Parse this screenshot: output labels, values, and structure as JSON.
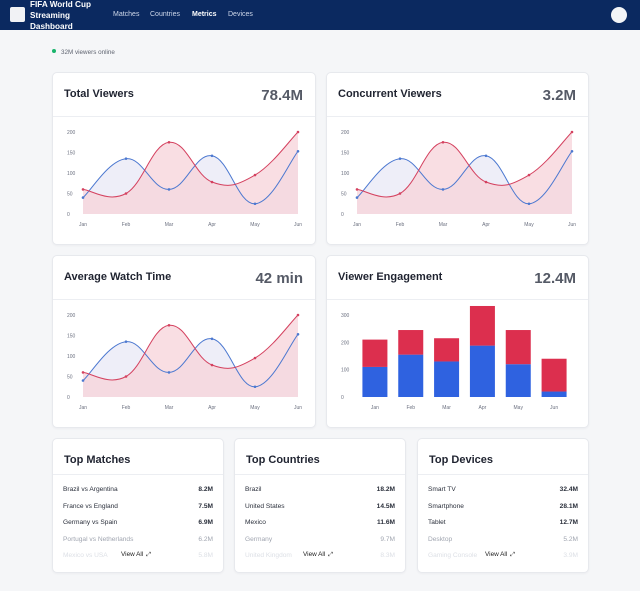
{
  "header": {
    "title": "FIFA World Cup Streaming Dashboard",
    "nav": [
      "Matches",
      "Countries",
      "Metrics",
      "Devices"
    ],
    "active_nav": "Metrics"
  },
  "status": {
    "text": "32M viewers online",
    "color": "#19b46b"
  },
  "cards": {
    "total_viewers": {
      "title": "Total Viewers",
      "metric": "78.4M"
    },
    "concurrent_viewers": {
      "title": "Concurrent Viewers",
      "metric": "3.2M"
    },
    "average_watch_time": {
      "title": "Average Watch Time",
      "metric": "42 min"
    },
    "viewer_engagement": {
      "title": "Viewer Engagement",
      "metric": "12.4M"
    }
  },
  "chart_data": [
    {
      "type": "line",
      "card": "Total Viewers",
      "categories": [
        "Jan",
        "Feb",
        "Mar",
        "Apr",
        "May",
        "Jun"
      ],
      "yticks": [
        0,
        50,
        100,
        150,
        200
      ],
      "ylim": [
        0,
        200
      ],
      "series": [
        {
          "values": [
            40,
            135,
            60,
            142,
            25,
            153
          ],
          "color": "#4c78d0",
          "fill": "#e8e8f5"
        },
        {
          "values": [
            60,
            50,
            175,
            78,
            95,
            200
          ],
          "color": "#d4415f",
          "fill": "#f7d3d9"
        }
      ]
    },
    {
      "type": "line",
      "card": "Concurrent Viewers",
      "categories": [
        "Jan",
        "Feb",
        "Mar",
        "Apr",
        "May",
        "Jun"
      ],
      "yticks": [
        0,
        50,
        100,
        150,
        200
      ],
      "ylim": [
        0,
        200
      ],
      "series": [
        {
          "values": [
            40,
            135,
            60,
            142,
            25,
            153
          ],
          "color": "#4c78d0",
          "fill": "#e8e8f5"
        },
        {
          "values": [
            60,
            50,
            175,
            78,
            95,
            200
          ],
          "color": "#d4415f",
          "fill": "#f7d3d9"
        }
      ]
    },
    {
      "type": "line",
      "card": "Average Watch Time",
      "categories": [
        "Jan",
        "Feb",
        "Mar",
        "Apr",
        "May",
        "Jun"
      ],
      "yticks": [
        0,
        50,
        100,
        150,
        200
      ],
      "ylim": [
        0,
        200
      ],
      "series": [
        {
          "values": [
            40,
            135,
            60,
            142,
            25,
            153
          ],
          "color": "#4c78d0",
          "fill": "#e8e8f5"
        },
        {
          "values": [
            60,
            50,
            175,
            78,
            95,
            200
          ],
          "color": "#d4415f",
          "fill": "#f7d3d9"
        }
      ]
    },
    {
      "type": "bar",
      "card": "Viewer Engagement",
      "stacked": true,
      "categories": [
        "Jan",
        "Feb",
        "Mar",
        "Apr",
        "May",
        "Jun"
      ],
      "yticks": [
        0,
        100,
        200,
        300
      ],
      "ylim": [
        0,
        300
      ],
      "series": [
        {
          "values": [
            110,
            155,
            130,
            188,
            120,
            20
          ],
          "color": "#2f62e0"
        },
        {
          "values": [
            100,
            90,
            85,
            145,
            125,
            120
          ],
          "color": "#dc2f4e"
        }
      ]
    }
  ],
  "lists": {
    "matches": {
      "title": "Top Matches",
      "view_all": "View All",
      "rows": [
        {
          "name": "Brazil vs Argentina",
          "value": "8.2M"
        },
        {
          "name": "France vs England",
          "value": "7.5M"
        },
        {
          "name": "Germany vs Spain",
          "value": "6.9M"
        },
        {
          "name": "Portugal vs Netherlands",
          "value": "6.2M"
        },
        {
          "name": "Mexico vs USA",
          "value": "5.8M"
        }
      ]
    },
    "countries": {
      "title": "Top Countries",
      "view_all": "View All",
      "rows": [
        {
          "name": "Brazil",
          "value": "18.2M"
        },
        {
          "name": "United States",
          "value": "14.5M"
        },
        {
          "name": "Mexico",
          "value": "11.6M"
        },
        {
          "name": "Germany",
          "value": "9.7M"
        },
        {
          "name": "United Kingdom",
          "value": "8.3M"
        }
      ]
    },
    "devices": {
      "title": "Top Devices",
      "view_all": "View All",
      "rows": [
        {
          "name": "Smart TV",
          "value": "32.4M"
        },
        {
          "name": "Smartphone",
          "value": "28.1M"
        },
        {
          "name": "Tablet",
          "value": "12.7M"
        },
        {
          "name": "Desktop",
          "value": "5.2M"
        },
        {
          "name": "Gaming Console",
          "value": "3.9M"
        }
      ]
    }
  }
}
